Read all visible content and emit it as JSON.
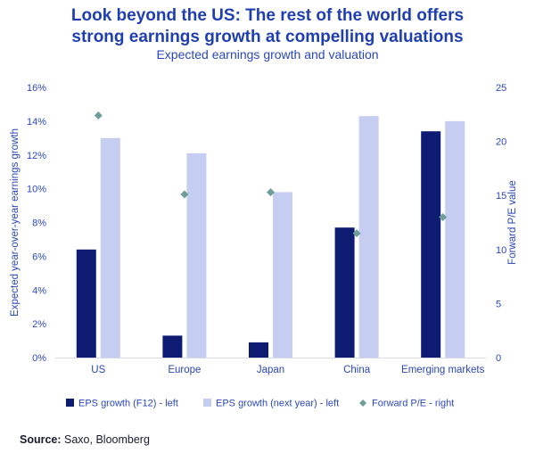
{
  "header": {
    "title_line1": "Look beyond the US: The rest of the world offers",
    "title_line2": "strong earnings growth at compelling valuations",
    "subtitle": "Expected earnings growth and valuation"
  },
  "source": {
    "label": "Source:",
    "text": " Saxo, Bloomberg"
  },
  "colors": {
    "eps_f12": "#0d1b73",
    "eps_next": "#c5cdf0",
    "pe": "#6f9e9a",
    "text": "#2a47b8"
  },
  "chart_data": {
    "type": "bar",
    "categories": [
      "US",
      "Europe",
      "Japan",
      "China",
      "Emerging markets"
    ],
    "series": [
      {
        "name": "EPS growth (F12) - left",
        "axis": "left",
        "kind": "bar",
        "values": [
          6.4,
          1.3,
          0.9,
          7.7,
          13.4
        ]
      },
      {
        "name": "EPS growth (next year) - left",
        "axis": "left",
        "kind": "bar",
        "values": [
          13.0,
          12.1,
          9.8,
          14.3,
          14.0
        ]
      },
      {
        "name": "Forward P/E - right",
        "axis": "right",
        "kind": "marker",
        "values": [
          22.4,
          15.1,
          15.3,
          11.5,
          13.0
        ]
      }
    ],
    "ylabel_left": "Expected year-over-year earnings growth",
    "ylabel_right": "Forward P/E value",
    "ylim_left": [
      0,
      16
    ],
    "ylim_right": [
      0,
      25
    ],
    "left_ticks": [
      "0%",
      "2%",
      "4%",
      "6%",
      "8%",
      "10%",
      "12%",
      "14%",
      "16%"
    ],
    "right_ticks": [
      "0",
      "5",
      "10",
      "15",
      "20",
      "25"
    ],
    "legend_position": "bottom",
    "grid": false
  }
}
